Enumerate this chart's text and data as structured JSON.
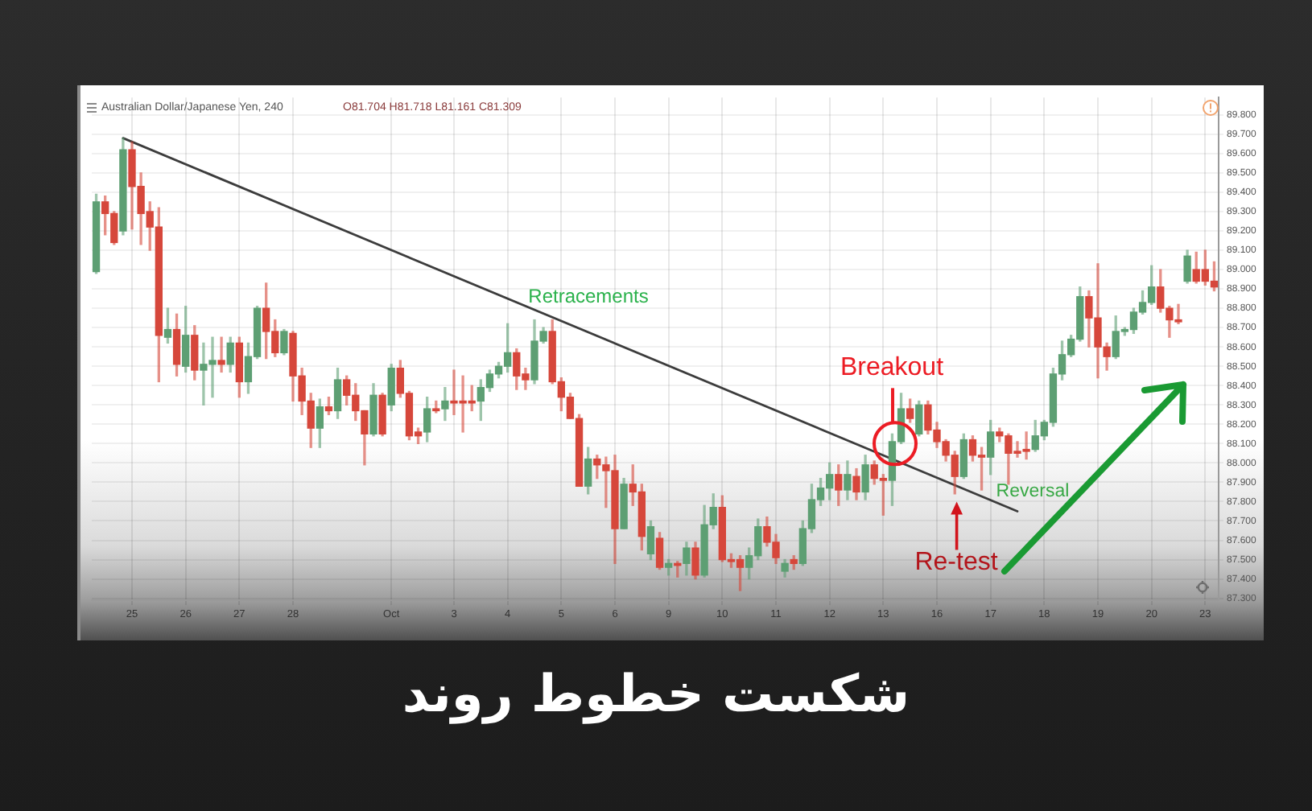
{
  "chart_data": {
    "type": "candlestick",
    "title": "شکست خطوط روند",
    "subtitle": "Australian Dollar/Japanese Yen, 240",
    "annotations": [
      "O81.704 H81.718 L81.161 C81.309",
      "Retracements",
      {
        "text": "Breakout",
        "y": 88.1
      },
      {
        "text": "Re-test",
        "y": 87.8
      },
      "Reversal"
    ],
    "categories": [
      null,
      null,
      null,
      null,
      "25",
      null,
      null,
      null,
      null,
      null,
      "26",
      null,
      null,
      null,
      null,
      null,
      "27",
      null,
      null,
      null,
      null,
      null,
      "28",
      null,
      null,
      null,
      null,
      null,
      null,
      null,
      null,
      null,
      null,
      "Oct",
      null,
      null,
      null,
      null,
      null,
      null,
      "3",
      null,
      null,
      null,
      null,
      null,
      "4",
      null,
      null,
      null,
      null,
      null,
      "5",
      null,
      null,
      null,
      null,
      null,
      "6",
      null,
      null,
      null,
      null,
      null,
      "9",
      null,
      null,
      null,
      null,
      null,
      "10",
      null,
      null,
      null,
      null,
      null,
      "11",
      null,
      null,
      null,
      null,
      null,
      "12",
      null,
      null,
      null,
      null,
      null,
      "13",
      null,
      null,
      null,
      null,
      null,
      "16",
      null,
      null,
      null,
      null,
      null,
      "17",
      null,
      null,
      null,
      null,
      null,
      "18",
      null,
      null,
      null,
      null,
      null,
      "19",
      null,
      null,
      null,
      null,
      null,
      "20",
      null,
      null,
      null,
      null,
      null,
      "23",
      null
    ],
    "series": [
      {
        "ohlc": [
          [
            88.99,
            89.39,
            88.98,
            89.35
          ],
          [
            89.35,
            89.38,
            89.18,
            89.29
          ],
          [
            89.29,
            89.3,
            89.13,
            89.14
          ],
          [
            89.2,
            89.68,
            89.18,
            89.62
          ],
          [
            89.62,
            89.66,
            89.21,
            89.43
          ],
          [
            89.43,
            89.5,
            89.13,
            89.29
          ],
          [
            89.3,
            89.35,
            89.1,
            89.22
          ],
          [
            89.22,
            89.32,
            88.42,
            88.66
          ],
          [
            88.65,
            88.8,
            88.62,
            88.69
          ],
          [
            88.69,
            88.77,
            88.45,
            88.51
          ],
          [
            88.5,
            88.81,
            88.47,
            88.66
          ],
          [
            88.66,
            88.71,
            88.43,
            88.48
          ],
          [
            88.48,
            88.62,
            88.3,
            88.51
          ],
          [
            88.51,
            88.65,
            88.34,
            88.53
          ],
          [
            88.53,
            88.65,
            88.47,
            88.51
          ],
          [
            88.51,
            88.65,
            88.47,
            88.62
          ],
          [
            88.62,
            88.65,
            88.34,
            88.42
          ],
          [
            88.42,
            88.62,
            88.36,
            88.55
          ],
          [
            88.55,
            88.81,
            88.54,
            88.8
          ],
          [
            88.8,
            88.93,
            88.54,
            88.68
          ],
          [
            88.68,
            88.74,
            88.55,
            88.57
          ],
          [
            88.57,
            88.69,
            88.56,
            88.68
          ],
          [
            88.67,
            88.68,
            88.32,
            88.45
          ],
          [
            88.45,
            88.49,
            88.25,
            88.32
          ],
          [
            88.32,
            88.36,
            88.08,
            88.18
          ],
          [
            88.18,
            88.33,
            88.08,
            88.29
          ],
          [
            88.29,
            88.34,
            88.25,
            88.27
          ],
          [
            88.27,
            88.49,
            88.23,
            88.43
          ],
          [
            88.43,
            88.45,
            88.3,
            88.35
          ],
          [
            88.35,
            88.41,
            88.22,
            88.27
          ],
          [
            88.27,
            88.27,
            87.99,
            88.15
          ],
          [
            88.15,
            88.41,
            88.14,
            88.35
          ],
          [
            88.35,
            88.36,
            88.14,
            88.15
          ],
          [
            88.3,
            88.51,
            88.27,
            88.49
          ],
          [
            88.49,
            88.53,
            88.34,
            88.36
          ],
          [
            88.36,
            88.37,
            88.12,
            88.14
          ],
          [
            88.16,
            88.18,
            88.1,
            88.14
          ],
          [
            88.16,
            88.34,
            88.11,
            88.28
          ],
          [
            88.28,
            88.32,
            88.26,
            88.27
          ],
          [
            88.28,
            88.39,
            88.22,
            88.32
          ],
          [
            88.32,
            88.48,
            88.25,
            88.31
          ],
          [
            88.32,
            88.45,
            88.16,
            88.31
          ],
          [
            88.32,
            88.4,
            88.27,
            88.31
          ],
          [
            88.32,
            88.43,
            88.22,
            88.39
          ],
          [
            88.39,
            88.48,
            88.37,
            88.46
          ],
          [
            88.46,
            88.52,
            88.44,
            88.5
          ],
          [
            88.5,
            88.72,
            88.47,
            88.57
          ],
          [
            88.57,
            88.59,
            88.38,
            88.45
          ],
          [
            88.46,
            88.49,
            88.38,
            88.43
          ],
          [
            88.43,
            88.74,
            88.41,
            88.63
          ],
          [
            88.63,
            88.7,
            88.62,
            88.68
          ],
          [
            88.68,
            88.74,
            88.41,
            88.42
          ],
          [
            88.42,
            88.44,
            88.27,
            88.34
          ],
          [
            88.34,
            88.36,
            88.23,
            88.23
          ],
          [
            88.23,
            88.25,
            87.88,
            87.88
          ],
          [
            87.88,
            88.08,
            87.84,
            88.02
          ],
          [
            88.02,
            88.04,
            87.92,
            87.99
          ],
          [
            87.99,
            88.03,
            87.77,
            87.96
          ],
          [
            87.96,
            88.04,
            87.48,
            87.66
          ],
          [
            87.66,
            87.92,
            87.66,
            87.89
          ],
          [
            87.89,
            87.99,
            87.78,
            87.85
          ],
          [
            87.85,
            87.89,
            87.55,
            87.62
          ],
          [
            87.53,
            87.7,
            87.5,
            87.67
          ],
          [
            87.61,
            87.64,
            87.45,
            87.46
          ],
          [
            87.46,
            87.5,
            87.42,
            87.48
          ],
          [
            87.48,
            87.49,
            87.41,
            87.47
          ],
          [
            87.48,
            87.59,
            87.42,
            87.56
          ],
          [
            87.56,
            87.59,
            87.4,
            87.42
          ],
          [
            87.42,
            87.78,
            87.41,
            87.68
          ],
          [
            87.68,
            87.84,
            87.66,
            87.77
          ],
          [
            87.77,
            87.83,
            87.49,
            87.5
          ],
          [
            87.5,
            87.53,
            87.46,
            87.49
          ],
          [
            87.5,
            87.52,
            87.34,
            87.46
          ],
          [
            87.46,
            87.56,
            87.4,
            87.52
          ],
          [
            87.52,
            87.71,
            87.5,
            87.67
          ],
          [
            87.67,
            87.72,
            87.57,
            87.59
          ],
          [
            87.59,
            87.63,
            87.48,
            87.51
          ],
          [
            87.44,
            87.5,
            87.41,
            87.48
          ],
          [
            87.5,
            87.52,
            87.45,
            87.48
          ],
          [
            87.48,
            87.7,
            87.47,
            87.66
          ],
          [
            87.66,
            87.89,
            87.64,
            87.81
          ],
          [
            87.81,
            87.92,
            87.78,
            87.87
          ],
          [
            87.87,
            88.0,
            87.81,
            87.94
          ],
          [
            87.94,
            87.99,
            87.78,
            87.86
          ],
          [
            87.86,
            88.01,
            87.81,
            87.94
          ],
          [
            87.93,
            87.97,
            87.81,
            87.85
          ],
          [
            87.85,
            88.04,
            87.81,
            87.99
          ],
          [
            87.99,
            88.01,
            87.89,
            87.92
          ],
          [
            87.92,
            87.94,
            87.73,
            87.91
          ],
          [
            87.91,
            88.15,
            87.78,
            88.11
          ],
          [
            88.11,
            88.36,
            88.1,
            88.28
          ],
          [
            88.28,
            88.33,
            88.21,
            88.23
          ],
          [
            88.15,
            88.32,
            88.14,
            88.3
          ],
          [
            88.3,
            88.32,
            88.15,
            88.17
          ],
          [
            88.17,
            88.21,
            88.08,
            88.11
          ],
          [
            88.11,
            88.12,
            88.01,
            88.04
          ],
          [
            88.04,
            88.06,
            87.84,
            87.93
          ],
          [
            87.93,
            88.15,
            87.92,
            88.12
          ],
          [
            88.12,
            88.14,
            88.01,
            88.04
          ],
          [
            88.04,
            88.08,
            87.86,
            88.03
          ],
          [
            88.03,
            88.22,
            87.94,
            88.16
          ],
          [
            88.16,
            88.18,
            88.11,
            88.14
          ],
          [
            88.14,
            88.15,
            87.89,
            88.05
          ],
          [
            88.06,
            88.11,
            88.03,
            88.05
          ],
          [
            88.07,
            88.16,
            88.02,
            88.06
          ],
          [
            88.07,
            88.22,
            88.06,
            88.14
          ],
          [
            88.14,
            88.22,
            88.12,
            88.21
          ],
          [
            88.21,
            88.49,
            88.19,
            88.46
          ],
          [
            88.46,
            88.63,
            88.43,
            88.56
          ],
          [
            88.56,
            88.66,
            88.55,
            88.64
          ],
          [
            88.64,
            88.91,
            88.63,
            88.86
          ],
          [
            88.86,
            88.89,
            88.6,
            88.75
          ],
          [
            88.75,
            89.03,
            88.44,
            88.6
          ],
          [
            88.6,
            88.62,
            88.48,
            88.55
          ],
          [
            88.55,
            88.76,
            88.54,
            88.68
          ],
          [
            88.68,
            88.7,
            88.66,
            88.69
          ],
          [
            88.69,
            88.8,
            88.67,
            88.78
          ],
          [
            88.78,
            88.89,
            88.77,
            88.83
          ],
          [
            88.83,
            89.02,
            88.82,
            88.91
          ],
          [
            88.91,
            89.0,
            88.78,
            88.8
          ],
          [
            88.8,
            88.81,
            88.65,
            88.74
          ],
          [
            88.74,
            88.82,
            88.72,
            88.73
          ],
          [
            88.94,
            89.1,
            88.93,
            89.07
          ],
          [
            89.0,
            89.09,
            88.93,
            88.94
          ],
          [
            89.0,
            89.1,
            88.92,
            88.94
          ],
          [
            88.94,
            89.04,
            88.89,
            88.91
          ]
        ],
        "colors": [
          "#5d9f73",
          "#d6473b",
          "#d6473b",
          "#5d9f73",
          "#d6473b",
          "#d6473b",
          "#d6473b",
          "#d6473b",
          "#5d9f73",
          "#d6473b",
          "#5d9f73",
          "#d6473b",
          "#5d9f73",
          "#5d9f73",
          "#d6473b",
          "#5d9f73",
          "#d6473b",
          "#5d9f73",
          "#5d9f73",
          "#d6473b",
          "#d6473b",
          "#5d9f73",
          "#d6473b",
          "#d6473b",
          "#d6473b",
          "#5d9f73",
          "#d6473b",
          "#5d9f73",
          "#d6473b",
          "#d6473b",
          "#d6473b",
          "#5d9f73",
          "#d6473b",
          "#5d9f73",
          "#d6473b",
          "#d6473b",
          "#d6473b",
          "#5d9f73",
          "#d6473b",
          "#5d9f73",
          "#d6473b",
          "#d6473b",
          "#d6473b",
          "#5d9f73",
          "#5d9f73",
          "#5d9f73",
          "#5d9f73",
          "#d6473b",
          "#d6473b",
          "#5d9f73",
          "#5d9f73",
          "#d6473b",
          "#d6473b",
          "#d6473b",
          "#d6473b",
          "#5d9f73",
          "#d6473b",
          "#d6473b",
          "#d6473b",
          "#5d9f73",
          "#d6473b",
          "#d6473b",
          "#5d9f73",
          "#d6473b",
          "#5d9f73",
          "#d6473b",
          "#5d9f73",
          "#d6473b",
          "#5d9f73",
          "#5d9f73",
          "#d6473b",
          "#d6473b",
          "#d6473b",
          "#5d9f73",
          "#5d9f73",
          "#d6473b",
          "#d6473b",
          "#5d9f73",
          "#d6473b",
          "#5d9f73",
          "#5d9f73",
          "#5d9f73",
          "#5d9f73",
          "#d6473b",
          "#5d9f73",
          "#d6473b",
          "#5d9f73",
          "#d6473b",
          "#d6473b",
          "#5d9f73",
          "#5d9f73",
          "#d6473b",
          "#5d9f73",
          "#d6473b",
          "#d6473b",
          "#d6473b",
          "#d6473b",
          "#5d9f73",
          "#d6473b",
          "#d6473b",
          "#5d9f73",
          "#d6473b",
          "#d6473b",
          "#d6473b",
          "#d6473b",
          "#5d9f73",
          "#5d9f73",
          "#5d9f73",
          "#5d9f73",
          "#5d9f73",
          "#5d9f73",
          "#d6473b",
          "#d6473b",
          "#d6473b",
          "#5d9f73",
          "#5d9f73",
          "#5d9f73",
          "#5d9f73",
          "#5d9f73",
          "#d6473b",
          "#d6473b",
          "#d6473b",
          "#5d9f73",
          "#d6473b",
          "#d6473b",
          "#d6473b"
        ]
      },
      {
        "type": "line",
        "color": "#3c3c3c",
        "values": [
          null,
          null,
          null,
          89.68,
          null,
          null,
          null,
          null,
          null,
          null,
          null,
          null,
          null,
          null,
          null,
          null,
          null,
          null,
          null,
          null,
          null,
          null,
          null,
          null,
          null,
          null,
          null,
          null,
          null,
          null,
          null,
          null,
          null,
          null,
          null,
          null,
          null,
          null,
          null,
          null,
          null,
          null,
          null,
          null,
          null,
          null,
          null,
          null,
          null,
          null,
          null,
          null,
          null,
          null,
          null,
          null,
          null,
          null,
          null,
          null,
          null,
          null,
          null,
          null,
          null,
          null,
          null,
          null,
          null,
          null,
          null,
          null,
          null,
          null,
          null,
          null,
          null,
          null,
          null,
          null,
          null,
          null,
          null,
          null,
          null,
          null,
          null,
          null,
          null,
          null,
          null,
          null,
          null,
          null,
          null,
          null,
          null,
          null,
          null,
          null,
          null,
          null,
          null,
          87.75,
          null,
          null,
          null,
          null,
          null,
          null,
          null,
          null,
          null,
          null,
          null,
          null,
          null,
          null,
          null,
          null,
          null,
          null,
          null,
          null,
          null,
          null
        ]
      }
    ],
    "ylim": [
      87.29,
      89.89
    ],
    "yticks": [
      {
        "value": 89.8,
        "label": "89.800"
      },
      {
        "value": 89.7,
        "label": "89.700"
      },
      {
        "value": 89.6,
        "label": "89.600"
      },
      {
        "value": 89.5,
        "label": "89.500"
      },
      {
        "value": 89.4,
        "label": "89.400"
      },
      {
        "value": 89.3,
        "label": "89.300"
      },
      {
        "value": 89.2,
        "label": "89.200"
      },
      {
        "value": 89.1,
        "label": "89.100"
      },
      {
        "value": 89.0,
        "label": "89.000"
      },
      {
        "value": 88.9,
        "label": "88.900"
      },
      {
        "value": 88.8,
        "label": "88.800"
      },
      {
        "value": 88.7,
        "label": "88.700"
      },
      {
        "value": 88.6,
        "label": "88.600"
      },
      {
        "value": 88.5,
        "label": "88.500"
      },
      {
        "value": 88.4,
        "label": "88.400"
      },
      {
        "value": 88.3,
        "label": "88.300"
      },
      {
        "value": 88.2,
        "label": "88.200"
      },
      {
        "value": 88.1,
        "label": "88.100"
      },
      {
        "value": 88.0,
        "label": "88.000"
      },
      {
        "value": 87.9,
        "label": "87.900"
      },
      {
        "value": 87.8,
        "label": "87.800"
      },
      {
        "value": 87.7,
        "label": "87.700"
      },
      {
        "value": 87.6,
        "label": "87.600"
      },
      {
        "value": 87.5,
        "label": "87.500"
      },
      {
        "value": 87.4,
        "label": "87.400"
      },
      {
        "value": 87.3,
        "label": "87.300"
      }
    ],
    "grid": true
  }
}
